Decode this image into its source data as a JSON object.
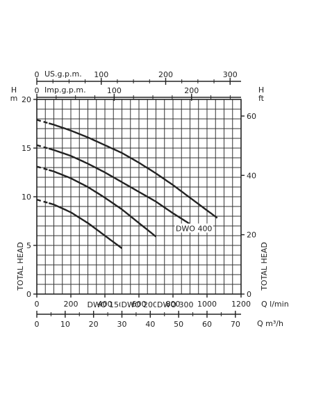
{
  "chart_data": {
    "type": "line",
    "x": [
      0,
      100,
      200,
      300,
      400,
      500,
      600,
      700,
      800,
      900,
      1000,
      1100
    ],
    "series": [
      {
        "name": "DWO 150",
        "values": [
          9.7,
          9.2,
          8.4,
          7.3,
          6.0,
          4.7,
          null,
          null,
          null,
          null,
          null,
          null
        ]
      },
      {
        "name": "DWO 200",
        "values": [
          13.1,
          12.6,
          11.9,
          11.0,
          9.9,
          8.7,
          7.3,
          5.9,
          null,
          null,
          null,
          null
        ]
      },
      {
        "name": "DWO 300",
        "values": [
          15.3,
          14.8,
          14.2,
          13.4,
          12.5,
          11.5,
          10.5,
          9.5,
          8.3,
          7.2,
          null,
          null
        ]
      },
      {
        "name": "DWO 400",
        "values": [
          17.9,
          17.4,
          16.8,
          16.1,
          15.3,
          14.5,
          13.5,
          12.4,
          11.2,
          9.9,
          8.6,
          7.3
        ]
      }
    ],
    "dashed_start_x": 80,
    "curve_end_x": {
      "DWO 150": 540,
      "DWO 200": 740,
      "DWO 300": 950,
      "DWO 400": 1060
    },
    "left_axis": {
      "unit_top": "H",
      "unit_bottom": "m",
      "ticks": [
        "0",
        "5",
        "10",
        "15",
        "20"
      ],
      "range": [
        0,
        20
      ]
    },
    "right_axis": {
      "unit_top": "H",
      "unit_bottom": "ft",
      "ticks": [
        "0",
        "20",
        "40",
        "60"
      ],
      "range": [
        0,
        65.6
      ]
    },
    "x_axis_lmin": {
      "label": "Q l/min",
      "ticks": [
        "0",
        "200",
        "400",
        "600",
        "800",
        "1000",
        "1200"
      ],
      "range": [
        0,
        1200
      ]
    },
    "x_axis_m3h": {
      "label": "Q m³/h",
      "ticks": [
        "0",
        "10",
        "20",
        "30",
        "40",
        "50",
        "60",
        "70"
      ],
      "range": [
        0,
        72
      ]
    },
    "top_axis_us": {
      "label": "US.g.p.m.",
      "ticks": [
        "0",
        "100",
        "200",
        "300"
      ],
      "range": [
        0,
        317
      ]
    },
    "top_axis_imp": {
      "label": "Imp.g.p.m.",
      "ticks": [
        "0",
        "100",
        "200"
      ],
      "range": [
        0,
        264
      ]
    },
    "ylabel_left": "TOTAL HEAD",
    "ylabel_right": "TOTAL HEAD",
    "grid": true,
    "colors": {
      "line": "#222222",
      "grid": "#333333",
      "background": "#ffffff"
    }
  }
}
